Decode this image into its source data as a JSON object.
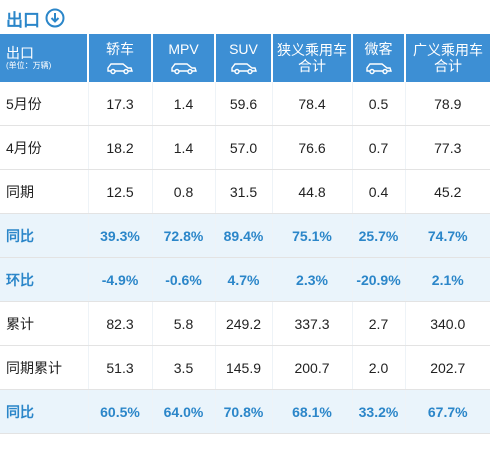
{
  "title": "出口",
  "table": {
    "header": {
      "first": "出口",
      "unit": "(单位：万辆)",
      "columns": [
        [
          "轿车"
        ],
        [
          "MPV"
        ],
        [
          "SUV"
        ],
        [
          "狭义乘用车",
          "合计"
        ],
        [
          "微客"
        ],
        [
          "广义乘用车",
          "合计"
        ]
      ]
    },
    "rows": [
      {
        "label": "5月份",
        "cells": [
          "17.3",
          "1.4",
          "59.6",
          "78.4",
          "0.5",
          "78.9"
        ]
      },
      {
        "label": "4月份",
        "cells": [
          "18.2",
          "1.4",
          "57.0",
          "76.6",
          "0.7",
          "77.3"
        ]
      },
      {
        "label": "同期",
        "cells": [
          "12.5",
          "0.8",
          "31.5",
          "44.8",
          "0.4",
          "45.2"
        ]
      },
      {
        "label": "同比",
        "cells": [
          "39.3%",
          "72.8%",
          "89.4%",
          "75.1%",
          "25.7%",
          "74.7%"
        ],
        "highlight": true
      },
      {
        "label": "环比",
        "cells": [
          "-4.9%",
          "-0.6%",
          "4.7%",
          "2.3%",
          "-20.9%",
          "2.1%"
        ],
        "highlight": true
      },
      {
        "label": "累计",
        "cells": [
          "82.3",
          "5.8",
          "249.2",
          "337.3",
          "2.7",
          "340.0"
        ]
      },
      {
        "label": "同期累计",
        "cells": [
          "51.3",
          "3.5",
          "145.9",
          "200.7",
          "2.0",
          "202.7"
        ]
      },
      {
        "label": "同比",
        "cells": [
          "60.5%",
          "64.0%",
          "70.8%",
          "68.1%",
          "33.2%",
          "67.7%"
        ],
        "highlight": true
      }
    ]
  }
}
